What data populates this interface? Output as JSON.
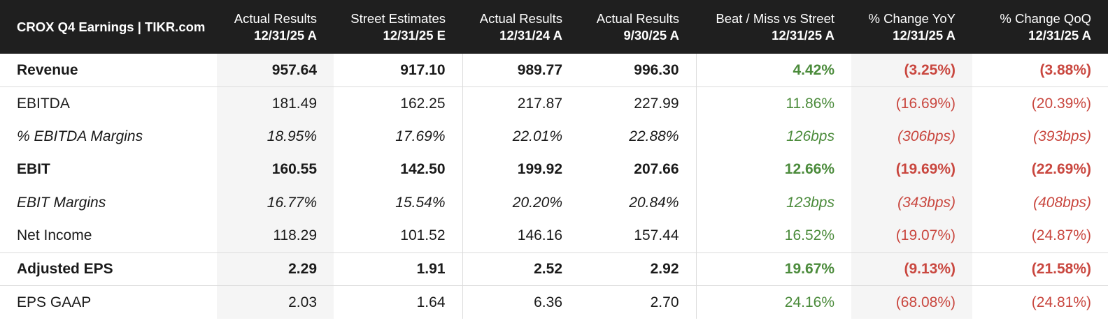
{
  "header": {
    "title": "CROX Q4 Earnings | TIKR.com",
    "columns": [
      {
        "line1": "Actual Results",
        "line2": "12/31/25 A"
      },
      {
        "line1": "Street Estimates",
        "line2": "12/31/25 E"
      },
      {
        "line1": "Actual Results",
        "line2": "12/31/24 A"
      },
      {
        "line1": "Actual Results",
        "line2": "9/30/25 A"
      },
      {
        "line1": "Beat / Miss vs Street",
        "line2": "12/31/25 A"
      },
      {
        "line1": "% Change YoY",
        "line2": "12/31/25 A"
      },
      {
        "line1": "% Change QoQ",
        "line2": "12/31/25 A"
      }
    ]
  },
  "rows": [
    {
      "label": "Revenue",
      "v": [
        "957.64",
        "917.10",
        "989.77",
        "996.30",
        "4.42%",
        "(3.25%)",
        "(3.88%)"
      ]
    },
    {
      "label": "EBITDA",
      "v": [
        "181.49",
        "162.25",
        "217.87",
        "227.99",
        "11.86%",
        "(16.69%)",
        "(20.39%)"
      ]
    },
    {
      "label": "% EBITDA Margins",
      "v": [
        "18.95%",
        "17.69%",
        "22.01%",
        "22.88%",
        "126bps",
        "(306bps)",
        "(393bps)"
      ]
    },
    {
      "label": "EBIT",
      "v": [
        "160.55",
        "142.50",
        "199.92",
        "207.66",
        "12.66%",
        "(19.69%)",
        "(22.69%)"
      ]
    },
    {
      "label": "EBIT Margins",
      "v": [
        "16.77%",
        "15.54%",
        "20.20%",
        "20.84%",
        "123bps",
        "(343bps)",
        "(408bps)"
      ]
    },
    {
      "label": "Net Income",
      "v": [
        "118.29",
        "101.52",
        "146.16",
        "157.44",
        "16.52%",
        "(19.07%)",
        "(24.87%)"
      ]
    },
    {
      "label": "Adjusted EPS",
      "v": [
        "2.29",
        "1.91",
        "2.52",
        "2.92",
        "19.67%",
        "(9.13%)",
        "(21.58%)"
      ]
    },
    {
      "label": "EPS GAAP",
      "v": [
        "2.03",
        "1.64",
        "6.36",
        "2.70",
        "24.16%",
        "(68.08%)",
        "(24.81%)"
      ]
    }
  ],
  "colors": {
    "header_bg": "#1f1f1f",
    "positive": "#4b8b3b",
    "negative": "#c9473f",
    "shaded_column": "#f5f5f5"
  }
}
